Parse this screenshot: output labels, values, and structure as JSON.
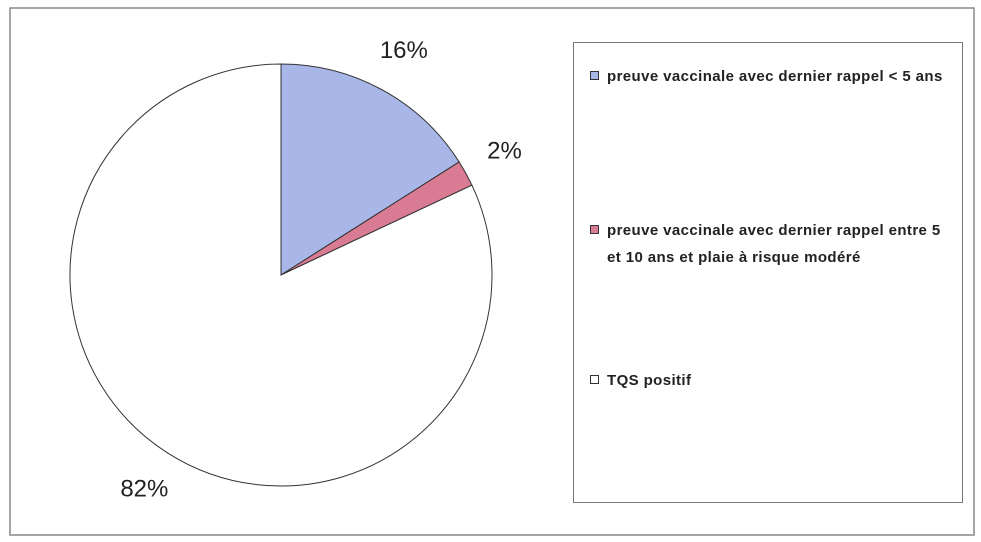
{
  "chart_data": {
    "type": "pie",
    "categories": [
      "preuve vaccinale avec dernier rappel < 5 ans",
      "preuve vaccinale avec dernier rappel entre 5 et 10 ans et plaie à risque modéré",
      "TQS positif"
    ],
    "values": [
      16,
      2,
      82
    ],
    "value_labels": [
      "16%",
      "2%",
      "82%"
    ],
    "colors": [
      "#a9b6e8",
      "#d97b92",
      "#ffffff"
    ],
    "legend": "right"
  }
}
